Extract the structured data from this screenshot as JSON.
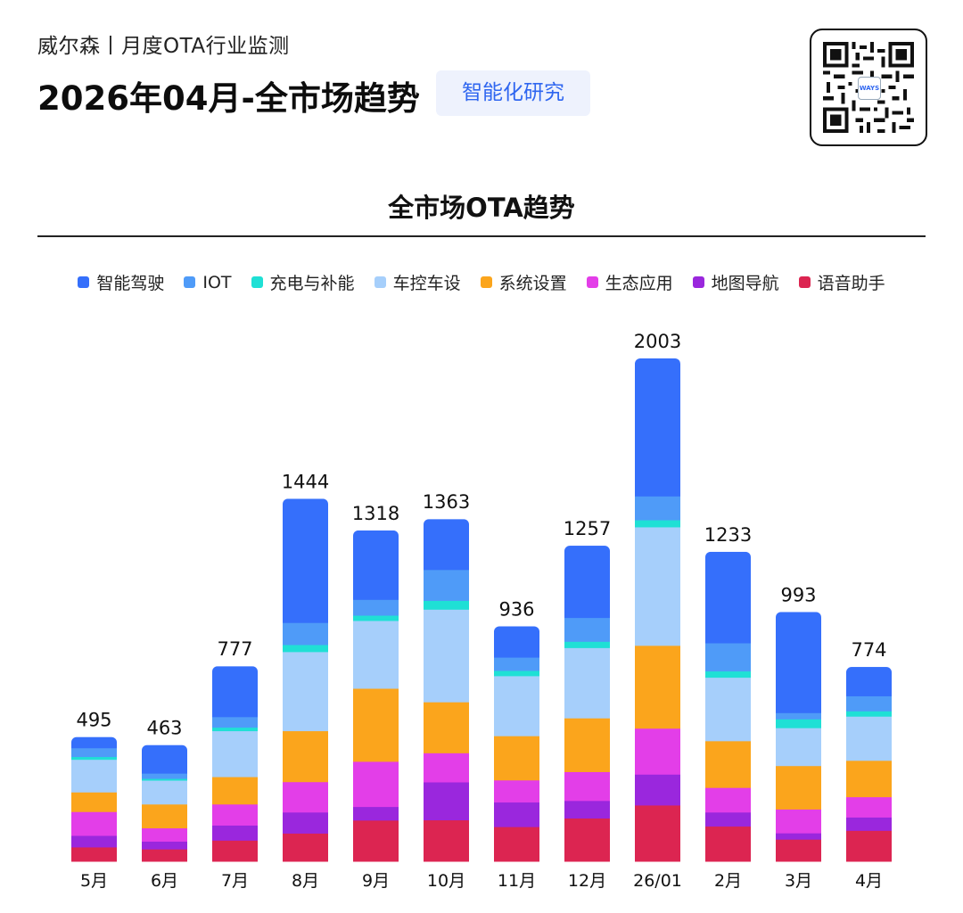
{
  "header": {
    "subtitle": "威尔森丨月度OTA行业监测",
    "title": "2026年04月-全市场趋势",
    "tag": "智能化研究"
  },
  "qr": {
    "logo_text": "WAYS",
    "icon": "qr-code-icon"
  },
  "colors": {
    "smart_driving": "#356ffb",
    "iot": "#4f9bf8",
    "charging": "#1fe0d5",
    "vehicle_control": "#a6cffb",
    "system": "#fba51c",
    "ecosystem": "#e33ee8",
    "navigation": "#9a27dd",
    "voice": "#dc2551"
  },
  "chart_data": {
    "type": "bar",
    "stacked": true,
    "title": "全市场OTA趋势",
    "xlabel": "",
    "ylabel": "",
    "legend_position": "top",
    "categories": [
      "5月",
      "6月",
      "7月",
      "8月",
      "9月",
      "10月",
      "11月",
      "12月",
      "26/01",
      "2月",
      "3月",
      "4月"
    ],
    "totals": [
      495,
      463,
      777,
      1444,
      1318,
      1363,
      936,
      1257,
      2003,
      1233,
      993,
      774
    ],
    "series": [
      {
        "name": "语音助手",
        "color": "#dc2551",
        "values": [
          57,
          49,
          84,
          112,
          164,
          165,
          138,
          172,
          224,
          140,
          88,
          123
        ]
      },
      {
        "name": "地图导航",
        "color": "#9a27dd",
        "values": [
          46,
          31,
          60,
          84,
          54,
          151,
          98,
          70,
          123,
          56,
          25,
          53
        ]
      },
      {
        "name": "生态应用",
        "color": "#e33ee8",
        "values": [
          95,
          53,
          84,
          121,
          180,
          116,
          88,
          115,
          183,
          98,
          95,
          81
        ]
      },
      {
        "name": "系统设置",
        "color": "#fba51c",
        "values": [
          78,
          95,
          109,
          203,
          291,
          203,
          176,
          214,
          330,
          186,
          173,
          145
        ]
      },
      {
        "name": "车控车设",
        "color": "#a6cffb",
        "values": [
          130,
          95,
          183,
          315,
          270,
          369,
          239,
          280,
          472,
          253,
          151,
          176
        ]
      },
      {
        "name": "充电与补能",
        "color": "#1fe0d5",
        "values": [
          11,
          7,
          14,
          28,
          21,
          35,
          21,
          25,
          28,
          25,
          35,
          21
        ]
      },
      {
        "name": "IOT",
        "color": "#4f9bf8",
        "values": [
          35,
          21,
          42,
          88,
          63,
          123,
          53,
          95,
          95,
          112,
          25,
          60
        ]
      },
      {
        "name": "智能驾驶",
        "color": "#356ffb",
        "values": [
          43,
          112,
          201,
          493,
          275,
          201,
          123,
          286,
          548,
          363,
          401,
          115
        ]
      }
    ],
    "legend_order": [
      "智能驾驶",
      "IOT",
      "充电与补能",
      "车控车设",
      "系统设置",
      "生态应用",
      "地图导航",
      "语音助手"
    ],
    "ylim": [
      0,
      2003
    ],
    "grid": false
  }
}
